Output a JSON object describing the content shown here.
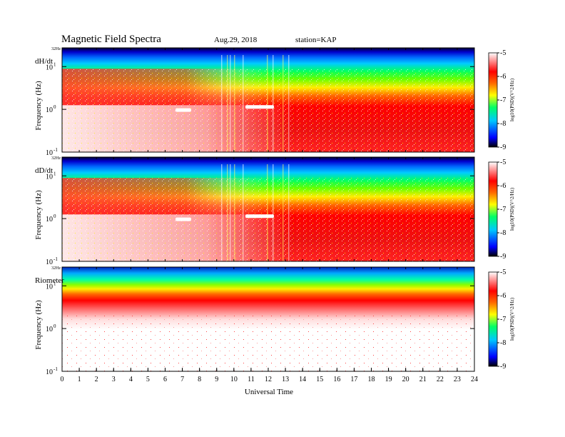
{
  "header": {
    "title": "Magnetic  Field  Spectra",
    "date": "Aug.29, 2018",
    "station": "station=KAP"
  },
  "chart_data": {
    "type": "heatmap",
    "x_axis": {
      "label": "Universal Time",
      "ticks": [
        "0",
        "1",
        "2",
        "3",
        "4",
        "5",
        "6",
        "7",
        "8",
        "9",
        "10",
        "11",
        "12",
        "13",
        "14",
        "15",
        "16",
        "17",
        "18",
        "19",
        "20",
        "21",
        "22",
        "23",
        "24"
      ],
      "range": [
        0,
        24
      ]
    },
    "panels": [
      {
        "label": "dH/dt",
        "ylabel": "Frequency  (Hz)",
        "top_label": "32Hz",
        "yticks": [
          {
            "base": "10",
            "exp": "1"
          },
          {
            "base": "10",
            "exp": "0"
          },
          {
            "base": "10",
            "exp": "-1"
          }
        ]
      },
      {
        "label": "dD/dt",
        "ylabel": "Frequency  (Hz)",
        "top_label": "32Hz",
        "yticks": [
          {
            "base": "10",
            "exp": "1"
          },
          {
            "base": "10",
            "exp": "0"
          },
          {
            "base": "10",
            "exp": "-1"
          }
        ]
      },
      {
        "label": "Riometer",
        "ylabel": "Frequency  (Hz)",
        "top_label": "32Hz",
        "yticks": [
          {
            "base": "10",
            "exp": "1"
          },
          {
            "base": "10",
            "exp": "0"
          },
          {
            "base": "10",
            "exp": "-1"
          }
        ]
      }
    ],
    "colorbar": {
      "label": "log10(PSD)(V^2/Hz)",
      "ticks": [
        "-5",
        "-6",
        "-7",
        "-8",
        "-9"
      ],
      "range": [
        -9,
        -5
      ],
      "colors": [
        "#000000",
        "#0000ff",
        "#00ccff",
        "#00ff66",
        "#ffff00",
        "#ff6600",
        "#ff0000",
        "#ffffff"
      ]
    }
  }
}
